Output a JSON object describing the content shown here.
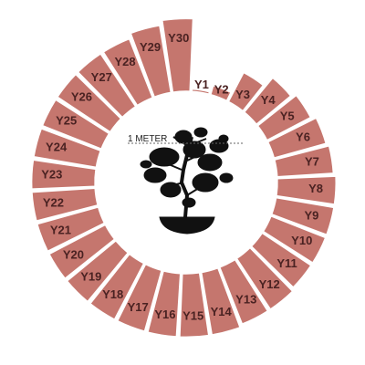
{
  "chart_data": {
    "type": "radial-bar",
    "categories": [
      "Y1",
      "Y2",
      "Y3",
      "Y4",
      "Y5",
      "Y6",
      "Y7",
      "Y8",
      "Y9",
      "Y10",
      "Y11",
      "Y12",
      "Y13",
      "Y14",
      "Y15",
      "Y16",
      "Y17",
      "Y18",
      "Y19",
      "Y20",
      "Y21",
      "Y22",
      "Y23",
      "Y24",
      "Y25",
      "Y26",
      "Y27",
      "Y28",
      "Y29",
      "Y30"
    ],
    "values": [
      1,
      4,
      14,
      19,
      21,
      23,
      24,
      25,
      25,
      25,
      25,
      26,
      26,
      27,
      27,
      27,
      27,
      27,
      27,
      27,
      27,
      27,
      27,
      27,
      27,
      27,
      27,
      27,
      29,
      31
    ],
    "reference_label": "1 METER",
    "color": "#c5766e"
  }
}
